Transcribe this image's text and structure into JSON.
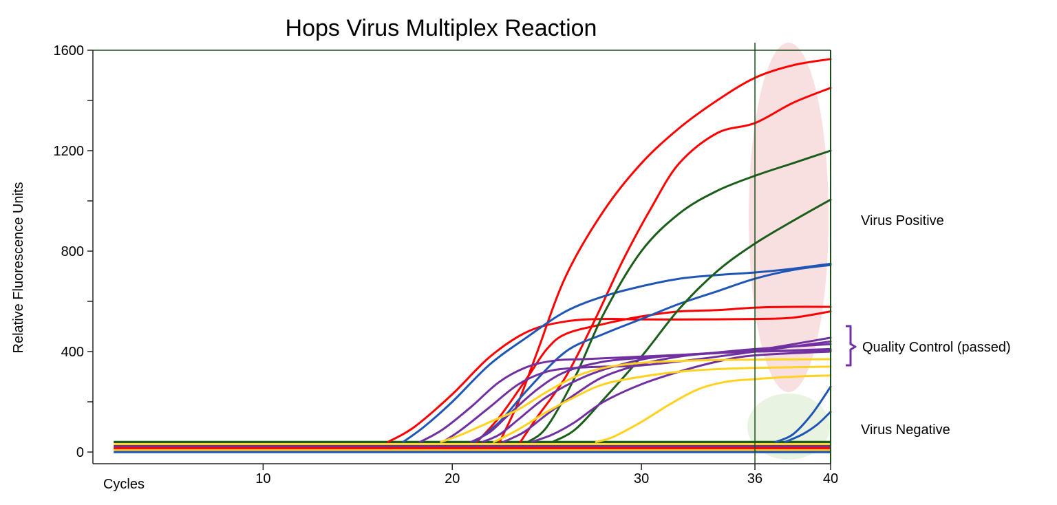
{
  "chart_data": {
    "type": "line",
    "title": "Hops Virus Multiplex Reaction",
    "ylabel": "Relative Fluorescence Units",
    "xlabel": "Cycles",
    "xlim": [
      1,
      40
    ],
    "ylim": [
      0,
      1600
    ],
    "yticks": [
      0,
      400,
      800,
      1200,
      1600
    ],
    "yticks_minor": [
      200,
      600,
      1000,
      1400
    ],
    "xticks": [
      10,
      20,
      30,
      36,
      40
    ],
    "threshold_cycle": 36,
    "grid": false,
    "colors": {
      "axis": "#1b4d1b",
      "red": "#ff0000",
      "blue": "#1f55b5",
      "green": "#1b5e1b",
      "purple": "#7030a0",
      "yellow": "#ffd21f",
      "positive_zone": "#f7d6d6",
      "negative_zone": "#e4f2dc",
      "bracket": "#7030a0"
    },
    "baselines": [
      {
        "value": 40,
        "color": "green"
      },
      {
        "value": 31,
        "color": "yellow"
      },
      {
        "value": 23,
        "color": "purple"
      },
      {
        "value": 15,
        "color": "red"
      },
      {
        "value": 7,
        "color": "yellow"
      },
      {
        "value": 0,
        "color": "blue"
      }
    ],
    "series": [
      {
        "color": "red",
        "points": [
          [
            16.6,
            40
          ],
          [
            18,
            100
          ],
          [
            20,
            230
          ],
          [
            22,
            380
          ],
          [
            24,
            480
          ],
          [
            26,
            520
          ],
          [
            28,
            530
          ],
          [
            30,
            528
          ],
          [
            33,
            528
          ],
          [
            36,
            530
          ],
          [
            38,
            535
          ],
          [
            40,
            560
          ]
        ]
      },
      {
        "color": "red",
        "points": [
          [
            21.3,
            40
          ],
          [
            22.5,
            140
          ],
          [
            24,
            300
          ],
          [
            25,
            410
          ],
          [
            26,
            470
          ],
          [
            28,
            510
          ],
          [
            30,
            540
          ],
          [
            32,
            560
          ],
          [
            34,
            565
          ],
          [
            36,
            575
          ],
          [
            38,
            578
          ],
          [
            40,
            578
          ]
        ]
      },
      {
        "color": "red",
        "points": [
          [
            22.5,
            40
          ],
          [
            23.5,
            200
          ],
          [
            24.5,
            400
          ],
          [
            26,
            700
          ],
          [
            28,
            960
          ],
          [
            30,
            1150
          ],
          [
            32,
            1290
          ],
          [
            34,
            1400
          ],
          [
            36,
            1490
          ],
          [
            38,
            1540
          ],
          [
            40,
            1565
          ]
        ]
      },
      {
        "color": "red",
        "points": [
          [
            23.6,
            40
          ],
          [
            24.5,
            140
          ],
          [
            26,
            300
          ],
          [
            27.5,
            520
          ],
          [
            29,
            760
          ],
          [
            30.5,
            970
          ],
          [
            32,
            1150
          ],
          [
            34,
            1270
          ],
          [
            36,
            1310
          ],
          [
            38,
            1390
          ],
          [
            40,
            1450
          ]
        ]
      },
      {
        "color": "blue",
        "points": [
          [
            17.4,
            40
          ],
          [
            18.5,
            100
          ],
          [
            20,
            200
          ],
          [
            22,
            350
          ],
          [
            24,
            460
          ],
          [
            26,
            560
          ],
          [
            28,
            620
          ],
          [
            30,
            660
          ],
          [
            32,
            690
          ],
          [
            34,
            705
          ],
          [
            36,
            715
          ],
          [
            38,
            730
          ],
          [
            40,
            750
          ]
        ]
      },
      {
        "color": "blue",
        "points": [
          [
            21.2,
            40
          ],
          [
            22.5,
            120
          ],
          [
            24,
            250
          ],
          [
            26,
            400
          ],
          [
            28,
            470
          ],
          [
            30,
            530
          ],
          [
            32,
            590
          ],
          [
            34,
            640
          ],
          [
            36,
            690
          ],
          [
            38,
            725
          ],
          [
            40,
            745
          ]
        ]
      },
      {
        "color": "blue",
        "points": [
          [
            37.1,
            40
          ],
          [
            38,
            70
          ],
          [
            39,
            150
          ],
          [
            40,
            260
          ]
        ]
      },
      {
        "color": "blue",
        "points": [
          [
            37.6,
            40
          ],
          [
            38.5,
            70
          ],
          [
            39.3,
            110
          ],
          [
            40,
            160
          ]
        ]
      },
      {
        "color": "green",
        "points": [
          [
            24,
            40
          ],
          [
            25,
            100
          ],
          [
            26.5,
            300
          ],
          [
            28,
            550
          ],
          [
            30,
            800
          ],
          [
            32,
            950
          ],
          [
            34,
            1040
          ],
          [
            36,
            1100
          ],
          [
            38,
            1150
          ],
          [
            40,
            1200
          ]
        ]
      },
      {
        "color": "green",
        "points": [
          [
            25.3,
            40
          ],
          [
            26.5,
            90
          ],
          [
            28,
            210
          ],
          [
            30,
            380
          ],
          [
            32,
            570
          ],
          [
            34,
            720
          ],
          [
            36,
            830
          ],
          [
            38,
            920
          ],
          [
            40,
            1005
          ]
        ]
      },
      {
        "color": "purple",
        "points": [
          [
            18.3,
            40
          ],
          [
            19.5,
            90
          ],
          [
            21,
            180
          ],
          [
            22.5,
            280
          ],
          [
            24,
            340
          ],
          [
            25.5,
            365
          ],
          [
            27,
            370
          ],
          [
            30,
            380
          ],
          [
            33,
            390
          ],
          [
            36,
            400
          ],
          [
            40,
            405
          ]
        ]
      },
      {
        "color": "purple",
        "points": [
          [
            19.5,
            40
          ],
          [
            20.5,
            90
          ],
          [
            22,
            180
          ],
          [
            23.5,
            270
          ],
          [
            25,
            320
          ],
          [
            26.5,
            335
          ],
          [
            28,
            340
          ],
          [
            30,
            345
          ],
          [
            33,
            370
          ],
          [
            36,
            400
          ],
          [
            40,
            440
          ]
        ]
      },
      {
        "color": "purple",
        "points": [
          [
            21,
            40
          ],
          [
            22,
            80
          ],
          [
            23,
            150
          ],
          [
            24.5,
            250
          ],
          [
            26,
            320
          ],
          [
            28,
            360
          ],
          [
            30,
            375
          ],
          [
            33,
            390
          ],
          [
            36,
            410
          ],
          [
            40,
            430
          ]
        ]
      },
      {
        "color": "purple",
        "points": [
          [
            21.6,
            40
          ],
          [
            22.5,
            70
          ],
          [
            23.5,
            130
          ],
          [
            25,
            220
          ],
          [
            27,
            300
          ],
          [
            29,
            350
          ],
          [
            31,
            380
          ],
          [
            34,
            395
          ],
          [
            36,
            405
          ],
          [
            40,
            455
          ]
        ]
      },
      {
        "color": "purple",
        "points": [
          [
            22.7,
            40
          ],
          [
            23.8,
            80
          ],
          [
            25,
            150
          ],
          [
            26.5,
            230
          ],
          [
            28,
            300
          ],
          [
            30,
            350
          ],
          [
            32,
            380
          ],
          [
            34,
            395
          ],
          [
            36,
            400
          ],
          [
            40,
            410
          ]
        ]
      },
      {
        "color": "purple",
        "points": [
          [
            24.2,
            40
          ],
          [
            25.3,
            70
          ],
          [
            26.5,
            120
          ],
          [
            28,
            200
          ],
          [
            30,
            270
          ],
          [
            32,
            320
          ],
          [
            34,
            360
          ],
          [
            36,
            385
          ],
          [
            40,
            400
          ]
        ]
      },
      {
        "color": "yellow",
        "points": [
          [
            19.4,
            40
          ],
          [
            20.5,
            70
          ],
          [
            22,
            120
          ],
          [
            23.5,
            170
          ],
          [
            25,
            240
          ],
          [
            26.5,
            300
          ],
          [
            28,
            335
          ],
          [
            30,
            355
          ],
          [
            33,
            365
          ],
          [
            36,
            368
          ],
          [
            40,
            370
          ]
        ]
      },
      {
        "color": "yellow",
        "points": [
          [
            22.2,
            40
          ],
          [
            23.5,
            90
          ],
          [
            25,
            160
          ],
          [
            26.5,
            220
          ],
          [
            28,
            270
          ],
          [
            30,
            300
          ],
          [
            32,
            320
          ],
          [
            34,
            330
          ],
          [
            36,
            335
          ],
          [
            40,
            340
          ]
        ]
      },
      {
        "color": "yellow",
        "points": [
          [
            27.6,
            40
          ],
          [
            28.5,
            60
          ],
          [
            30,
            120
          ],
          [
            31.5,
            190
          ],
          [
            33,
            250
          ],
          [
            34.5,
            280
          ],
          [
            36,
            290
          ],
          [
            38,
            300
          ],
          [
            40,
            305
          ]
        ]
      }
    ],
    "annotations": {
      "positive": "Virus Positive",
      "qc": "Quality Control (passed)",
      "negative": "Virus Negative"
    }
  }
}
